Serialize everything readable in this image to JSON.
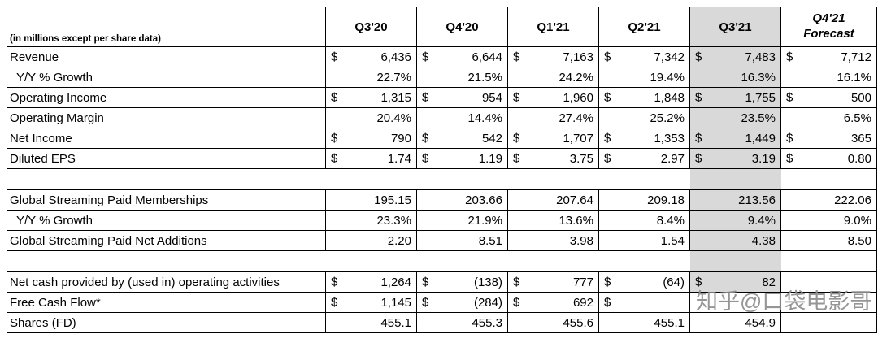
{
  "table": {
    "unit_note": "(in millions except per share data)",
    "columns": [
      "Q3'20",
      "Q4'20",
      "Q1'21",
      "Q2'21",
      "Q3'21"
    ],
    "forecast": {
      "line1": "Q4'21",
      "line2": "Forecast"
    },
    "symbols": {
      "dollar": "$"
    },
    "highlight_color": "#d9d9d9",
    "rows": [
      {
        "label": "Revenue",
        "type": "data",
        "dollar_cols": [
          0,
          1,
          2,
          3,
          4,
          5
        ],
        "shade_q3": true,
        "values": [
          "6,436",
          "6,644",
          "7,163",
          "7,342",
          "7,483",
          "7,712"
        ]
      },
      {
        "label": "Y/Y % Growth",
        "type": "data",
        "indent": true,
        "dollar_cols": [],
        "shade_q3": true,
        "values": [
          "22.7%",
          "21.5%",
          "24.2%",
          "19.4%",
          "16.3%",
          "16.1%"
        ]
      },
      {
        "label": "Operating Income",
        "type": "data",
        "dollar_cols": [
          0,
          1,
          2,
          3,
          4,
          5
        ],
        "shade_q3": true,
        "values": [
          "1,315",
          "954",
          "1,960",
          "1,848",
          "1,755",
          "500"
        ]
      },
      {
        "label": "Operating Margin",
        "type": "data",
        "dollar_cols": [],
        "shade_q3": true,
        "values": [
          "20.4%",
          "14.4%",
          "27.4%",
          "25.2%",
          "23.5%",
          "6.5%"
        ]
      },
      {
        "label": "Net Income",
        "type": "data",
        "dollar_cols": [
          0,
          1,
          2,
          3,
          4,
          5
        ],
        "shade_q3": true,
        "values": [
          "790",
          "542",
          "1,707",
          "1,353",
          "1,449",
          "365"
        ]
      },
      {
        "label": "Diluted EPS",
        "type": "data",
        "dollar_cols": [
          0,
          1,
          2,
          3,
          4,
          5
        ],
        "shade_q3": true,
        "values": [
          "1.74",
          "1.19",
          "3.75",
          "2.97",
          "3.19",
          "0.80"
        ]
      },
      {
        "type": "spacer",
        "shade_q3": true
      },
      {
        "label": "Global Streaming Paid Memberships",
        "type": "data",
        "dollar_cols": [],
        "shade_q3": true,
        "values": [
          "195.15",
          "203.66",
          "207.64",
          "209.18",
          "213.56",
          "222.06"
        ]
      },
      {
        "label": "Y/Y % Growth",
        "type": "data",
        "indent": true,
        "dollar_cols": [],
        "shade_q3": true,
        "values": [
          "23.3%",
          "21.9%",
          "13.6%",
          "8.4%",
          "9.4%",
          "9.0%"
        ]
      },
      {
        "label": "Global Streaming Paid Net Additions",
        "type": "data",
        "dollar_cols": [],
        "shade_q3": true,
        "values": [
          "2.20",
          "8.51",
          "3.98",
          "1.54",
          "4.38",
          "8.50"
        ]
      },
      {
        "type": "spacer",
        "shade_q3": true
      },
      {
        "label": "Net cash provided by (used in) operating activities",
        "type": "data",
        "dollar_cols": [
          0,
          1,
          2,
          3,
          4
        ],
        "shade_q3": true,
        "values": [
          "1,264",
          "(138)",
          "777",
          "(64)",
          "82",
          ""
        ]
      },
      {
        "label": "Free Cash Flow*",
        "type": "data",
        "dollar_cols": [
          0,
          1,
          2,
          3
        ],
        "shade_q3": false,
        "values": [
          "1,145",
          "(284)",
          "692",
          "",
          "",
          ""
        ]
      },
      {
        "label": "Shares (FD)",
        "type": "data",
        "dollar_cols": [],
        "shade_q3": false,
        "values": [
          "455.1",
          "455.3",
          "455.6",
          "455.1",
          "454.9",
          ""
        ]
      }
    ]
  },
  "watermark": "知乎@口袋电影哥"
}
